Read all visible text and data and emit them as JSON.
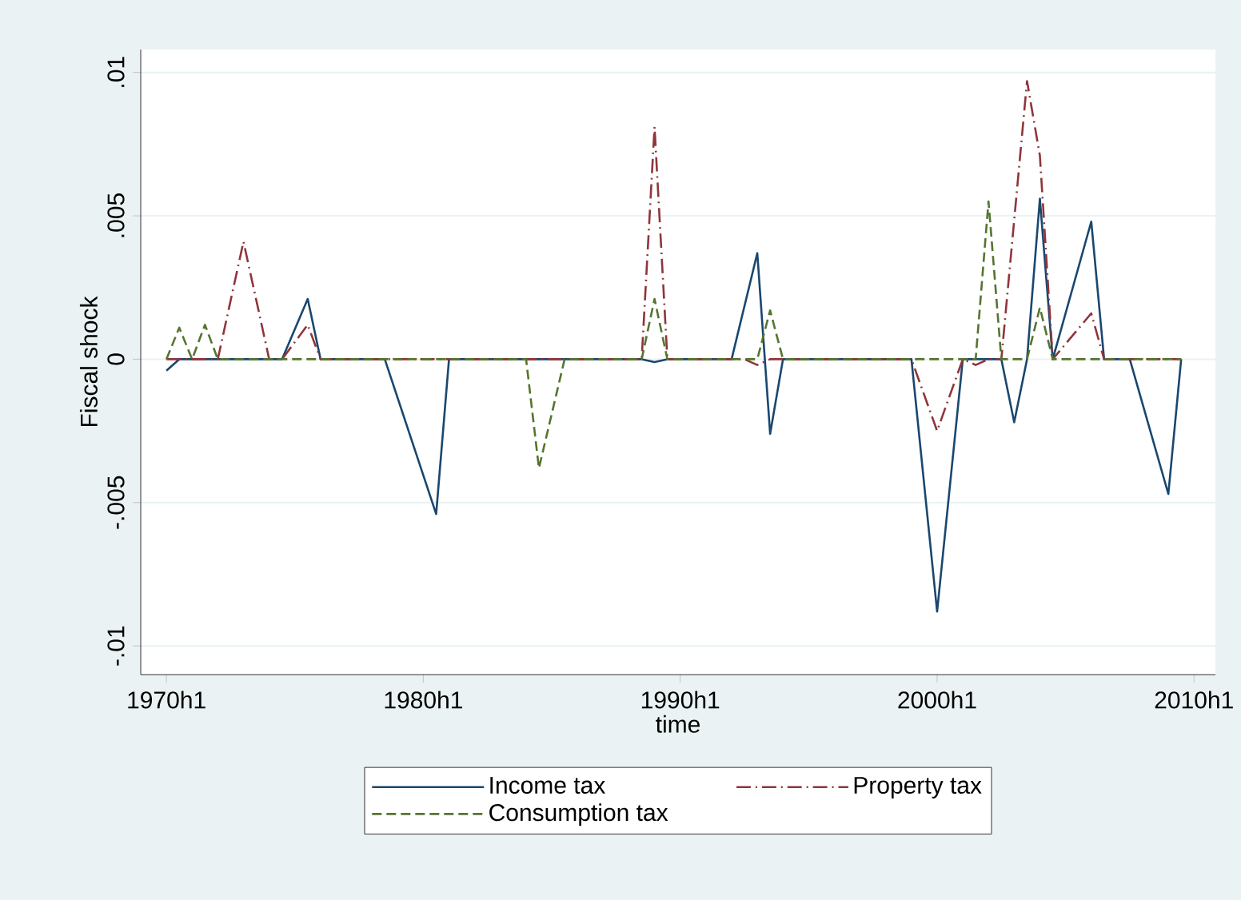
{
  "chart_data": {
    "type": "line",
    "xlabel": "time",
    "ylabel": "Fiscal shock",
    "xlim": [
      "1969-01",
      "2010-11"
    ],
    "ylim": [
      -0.011,
      0.0108
    ],
    "xticks": [
      {
        "value": "1970-01",
        "label": "1970h1"
      },
      {
        "value": "1980-01",
        "label": "1980h1"
      },
      {
        "value": "1990-01",
        "label": "1990h1"
      },
      {
        "value": "2000-01",
        "label": "2000h1"
      },
      {
        "value": "2010-01",
        "label": "2010h1"
      }
    ],
    "yticks": [
      {
        "value": -0.01,
        "label": "-.01"
      },
      {
        "value": -0.005,
        "label": "-.005"
      },
      {
        "value": 0,
        "label": "0"
      },
      {
        "value": 0.005,
        "label": ".005"
      },
      {
        "value": 0.01,
        "label": ".01"
      }
    ],
    "grid": "y",
    "legend": "bottom",
    "marker": "none",
    "series": [
      {
        "name": "Income tax",
        "color": "#1a476f",
        "line_style": "solid",
        "x": [
          "1970-01",
          "1970-07",
          "1974-07",
          "1975-07",
          "1976-01",
          "1978-07",
          "1980-07",
          "1981-01",
          "1988-07",
          "1989-01",
          "1989-07",
          "1992-01",
          "1993-01",
          "1993-07",
          "1994-01",
          "1999-01",
          "2000-01",
          "2001-01",
          "2002-07",
          "2003-01",
          "2003-07",
          "2004-01",
          "2004-07",
          "2006-01",
          "2006-07",
          "2007-07",
          "2009-01",
          "2009-07"
        ],
        "values": [
          -0.0004,
          0,
          0,
          0.0021,
          0,
          0,
          -0.0054,
          0,
          0,
          -0.0001,
          0,
          0,
          0.0037,
          -0.0026,
          0,
          0,
          -0.0088,
          0,
          0,
          -0.0022,
          0,
          0.0056,
          0,
          0.0048,
          0,
          0,
          -0.0047,
          0
        ]
      },
      {
        "name": "Property tax",
        "color": "#90353b",
        "line_style": "dashdot",
        "x": [
          "1970-01",
          "1972-01",
          "1973-01",
          "1974-01",
          "1974-07",
          "1975-07",
          "1976-01",
          "1988-07",
          "1989-01",
          "1989-07",
          "1992-07",
          "1993-01",
          "1993-07",
          "1999-01",
          "2000-01",
          "2001-01",
          "2001-07",
          "2002-01",
          "2002-07",
          "2003-07",
          "2004-01",
          "2004-07",
          "2006-01",
          "2006-07",
          "2009-07"
        ],
        "values": [
          0,
          0,
          0.0041,
          0,
          0,
          0.0012,
          0,
          0,
          0.0081,
          0,
          0,
          -0.0002,
          0,
          0,
          -0.0025,
          0,
          -0.0002,
          0,
          0,
          0.0097,
          0.0071,
          0,
          0.0016,
          0,
          0
        ]
      },
      {
        "name": "Consumption tax",
        "color": "#55752f",
        "line_style": "dashed",
        "x": [
          "1970-01",
          "1970-07",
          "1971-01",
          "1971-07",
          "1972-01",
          "1984-01",
          "1984-07",
          "1985-07",
          "1988-07",
          "1989-01",
          "1989-07",
          "1993-01",
          "1993-07",
          "1994-01",
          "2001-07",
          "2002-01",
          "2002-07",
          "2003-07",
          "2004-01",
          "2004-07",
          "2009-07"
        ],
        "values": [
          0,
          0.0011,
          0,
          0.0012,
          0,
          0,
          -0.0038,
          0,
          0,
          0.0021,
          0,
          0,
          0.0017,
          0,
          0,
          0.0055,
          0,
          0,
          0.0018,
          0,
          0
        ]
      }
    ]
  }
}
